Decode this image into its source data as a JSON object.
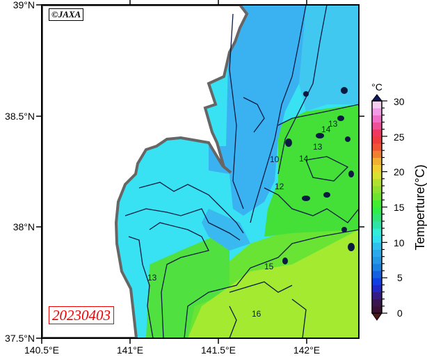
{
  "map": {
    "credit": "©JAXA",
    "date": "20230403",
    "lat_labels": [
      "39°N",
      "38.5°N",
      "38°N",
      "37.5°N"
    ],
    "lon_labels": [
      "140.5°E",
      "141°E",
      "141.5°E",
      "142°E"
    ],
    "contour_labels": [
      "13",
      "14",
      "13",
      "12",
      "10",
      "15",
      "16",
      "13",
      "14"
    ],
    "colors": {
      "land": "#ffffff",
      "coast_mask": "#666666",
      "cold_sea": "#3ab2f2",
      "coastal_sea": "#38e2f2",
      "mid_sea": "#48e038",
      "warm_sea": "#a8ea30",
      "contour": "#0a1a40",
      "date_text": "#e00000"
    }
  },
  "colorbar": {
    "unit": "°C",
    "title": "Temperture(°C)",
    "min": 0,
    "max": 30,
    "tick_labels": [
      "30",
      "25",
      "20",
      "15",
      "10",
      "5",
      "0"
    ],
    "stops": [
      [
        0,
        "#3a0e22"
      ],
      [
        2,
        "#3a1860"
      ],
      [
        3,
        "#3020a8"
      ],
      [
        4,
        "#1030e8"
      ],
      [
        5,
        "#1050e0"
      ],
      [
        7,
        "#2090e0"
      ],
      [
        9,
        "#30b0f0"
      ],
      [
        11,
        "#30f0f0"
      ],
      [
        13,
        "#30e090"
      ],
      [
        15,
        "#30f030"
      ],
      [
        17,
        "#80e030"
      ],
      [
        19,
        "#c0e030"
      ],
      [
        20,
        "#f0e030"
      ],
      [
        22,
        "#f0a030"
      ],
      [
        23,
        "#f06030"
      ],
      [
        25,
        "#f03040"
      ],
      [
        26,
        "#f04080"
      ],
      [
        28,
        "#f080e0"
      ],
      [
        30,
        "#f4e8f4"
      ]
    ]
  }
}
